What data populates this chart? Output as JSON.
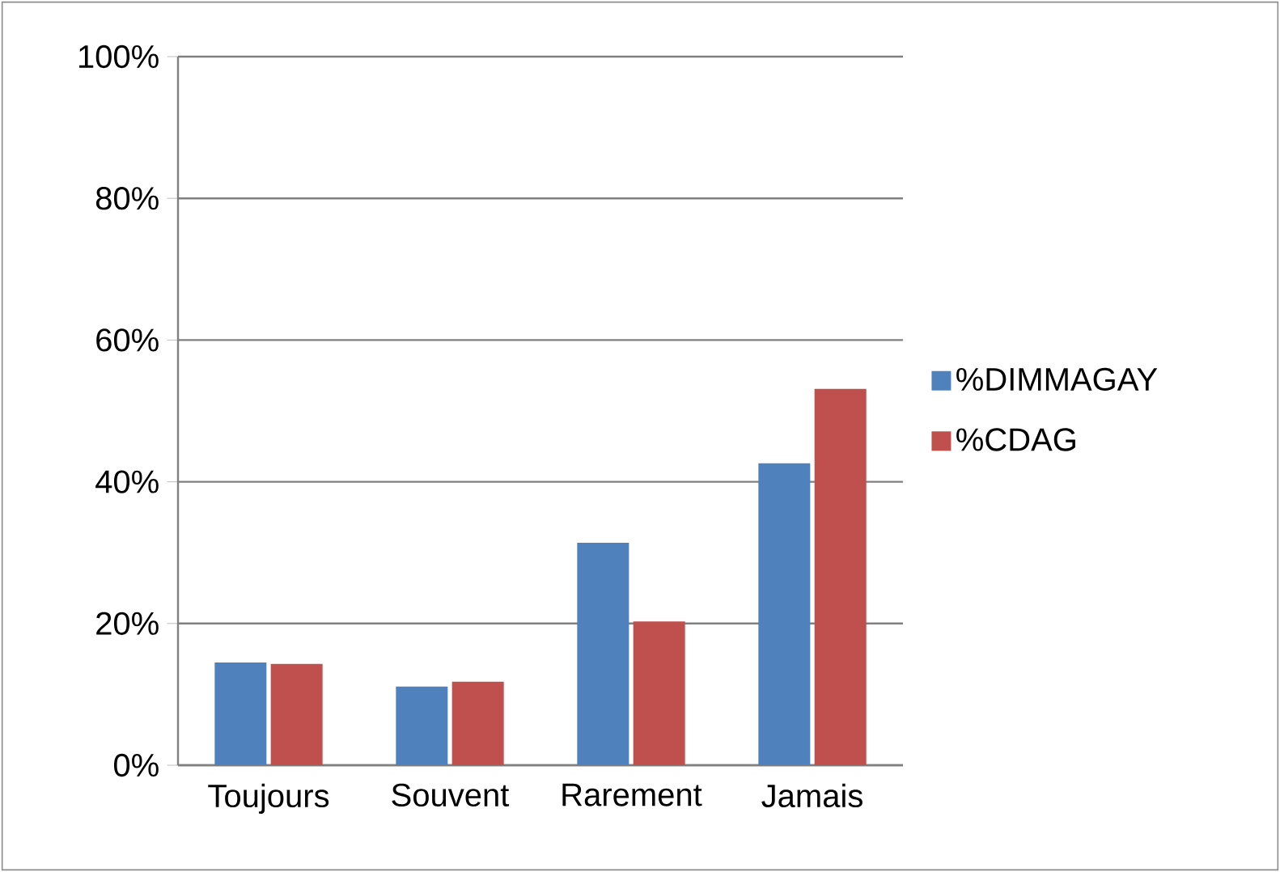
{
  "chart_data": {
    "type": "bar",
    "categories": [
      "Toujours",
      "Souvent",
      "Rarement",
      "Jamais"
    ],
    "series": [
      {
        "name": "%DIMMAGAY",
        "color": "#4f81bd",
        "values": [
          14.5,
          11.1,
          31.4,
          42.6
        ]
      },
      {
        "name": "%CDAG",
        "color": "#c0504d",
        "values": [
          14.3,
          11.8,
          20.3,
          53.1
        ]
      }
    ],
    "ylim": [
      0,
      100
    ],
    "yticks": [
      {
        "value": 0,
        "label": "0%"
      },
      {
        "value": 20,
        "label": "20%"
      },
      {
        "value": 40,
        "label": "40%"
      },
      {
        "value": 60,
        "label": "60%"
      },
      {
        "value": 80,
        "label": "80%"
      },
      {
        "value": 100,
        "label": "100%"
      }
    ],
    "grid": "y",
    "legend": "right"
  }
}
